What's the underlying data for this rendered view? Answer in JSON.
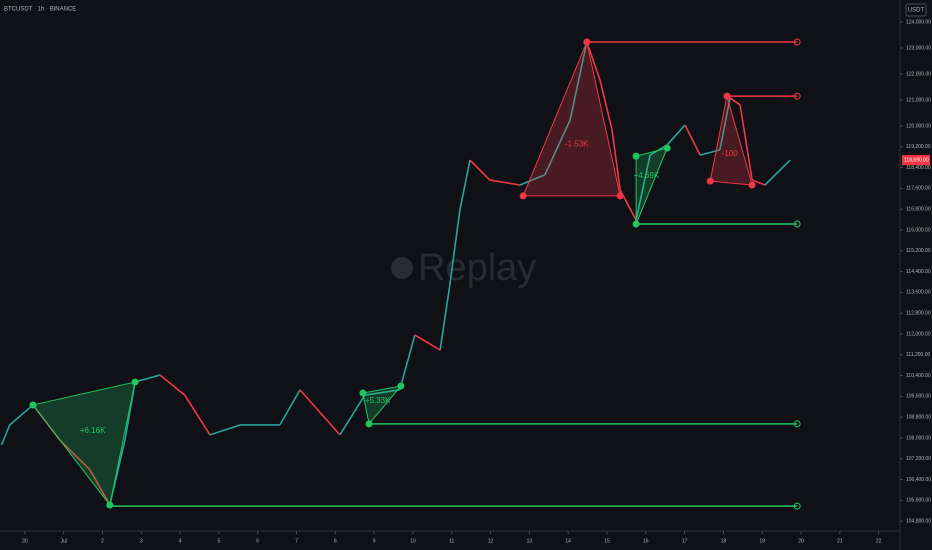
{
  "chart_data": {
    "type": "line",
    "title": "BTCUSDT · 1h · BINANCE",
    "currency": "USDT",
    "watermark": "Replay",
    "x": [
      -0.6,
      -0.39,
      0.21,
      0.9,
      1.68,
      2.19,
      2.58,
      2.84,
      3.48,
      4.12,
      4.77,
      5.54,
      6.57,
      7.09,
      8.12,
      8.76,
      9.66,
      10.05,
      10.7,
      10.95,
      11.21,
      11.47,
      11.98,
      12.76,
      13.4,
      14.05,
      14.48,
      14.82,
      15.13,
      15.34,
      15.75,
      16.11,
      16.55,
      17.01,
      17.4,
      17.91,
      18.17,
      18.43,
      18.74,
      19.07,
      19.72
    ],
    "values": [
      107730,
      108500,
      109270,
      107920,
      106770,
      105420,
      107920,
      110150,
      110420,
      109650,
      108120,
      108500,
      108500,
      109850,
      108120,
      109650,
      109850,
      111960,
      111380,
      113880,
      116770,
      118690,
      117920,
      117730,
      118120,
      120230,
      123230,
      121770,
      119850,
      117540,
      116380,
      118880,
      119270,
      120040,
      118880,
      119080,
      121080,
      120810,
      117920,
      117730,
      118690
    ],
    "up_color": "#26a69a",
    "down_color": "#f23645",
    "xlim": [
      -0.64,
      22.55
    ],
    "xticks": [
      {
        "value": 0,
        "label": "30"
      },
      {
        "value": 1,
        "label": "Jul"
      },
      2,
      3,
      4,
      5,
      6,
      7,
      8,
      9,
      10,
      11,
      12,
      13,
      14,
      15,
      16,
      17,
      18,
      19,
      20,
      21,
      22
    ],
    "ylim": [
      104460,
      124846
    ],
    "yticks": [
      {
        "value": 124000,
        "label": "124,000.00"
      },
      {
        "value": 123000,
        "label": "123,000.00"
      },
      {
        "value": 122000,
        "label": "122,000.00"
      },
      {
        "value": 121000,
        "label": "121,000.00"
      },
      {
        "value": 120000,
        "label": "120,000.00"
      },
      {
        "value": 119200,
        "label": "119,200.00"
      },
      {
        "value": 118400,
        "label": "118,400.00"
      },
      {
        "value": 117600,
        "label": "117,600.00"
      },
      {
        "value": 116800,
        "label": "116,800.00"
      },
      {
        "value": 116000,
        "label": "116,000.00"
      },
      {
        "value": 115200,
        "label": "115,200.00"
      },
      {
        "value": 114400,
        "label": "114,400.00"
      },
      {
        "value": 113600,
        "label": "113,600.00"
      },
      {
        "value": 112800,
        "label": "112,800.00"
      },
      {
        "value": 112000,
        "label": "112,000.00"
      },
      {
        "value": 111200,
        "label": "111,200.00"
      },
      {
        "value": 110400,
        "label": "110,400.00"
      },
      {
        "value": 109600,
        "label": "109,600.00"
      },
      {
        "value": 108800,
        "label": "108,800.00"
      },
      {
        "value": 108000,
        "label": "108,000.00"
      },
      {
        "value": 107200,
        "label": "107,200.00"
      },
      {
        "value": 106400,
        "label": "106,400.00"
      },
      {
        "value": 105600,
        "label": "105,600.00"
      },
      {
        "value": 104800,
        "label": "104,800.00"
      }
    ],
    "last_price": {
      "value": 118690,
      "label": "118,690.00"
    },
    "patterns": [
      {
        "label": "+6.16K",
        "color": "#22c55e",
        "x": [
          0.21,
          2.84,
          2.19
        ],
        "values": [
          109270,
          110150,
          105420
        ]
      },
      {
        "label": "+5.33K",
        "color": "#22c55e",
        "x": [
          8.71,
          9.69,
          8.87
        ],
        "values": [
          109730,
          110000,
          108540
        ]
      },
      {
        "label": "-1.53K",
        "color": "#f23645",
        "x": [
          14.48,
          12.84,
          15.34
        ],
        "values": [
          123230,
          117310,
          117310
        ]
      },
      {
        "label": "+4.69K",
        "color": "#22c55e",
        "x": [
          15.75,
          16.55,
          15.75
        ],
        "values": [
          118840,
          119150,
          116230
        ]
      },
      {
        "label": "-100",
        "color": "#f23645",
        "x": [
          18.09,
          17.66,
          18.74
        ],
        "values": [
          121150,
          117880,
          117730
        ]
      }
    ],
    "levels": [
      {
        "price": 123230,
        "start": 14.48,
        "end": 19.9,
        "color": "#f23645"
      },
      {
        "price": 121150,
        "start": 18.09,
        "end": 19.9,
        "color": "#f23645"
      },
      {
        "price": 116230,
        "start": 15.75,
        "end": 19.9,
        "color": "#22c55e"
      },
      {
        "price": 108540,
        "start": 8.87,
        "end": 19.9,
        "color": "#22c55e"
      },
      {
        "price": 105380,
        "start": 2.19,
        "end": 19.9,
        "color": "#22c55e"
      }
    ]
  }
}
